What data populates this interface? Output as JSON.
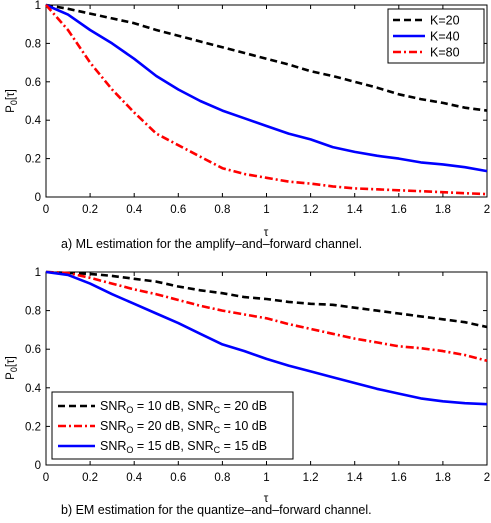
{
  "chart_data": [
    {
      "type": "line",
      "caption": "a) ML estimation for the amplify–and–forward channel.",
      "xlabel": "τ",
      "ylabel": {
        "main": "P",
        "sub": "0",
        "rest": "[τ]"
      },
      "xlim": [
        0,
        2
      ],
      "ylim": [
        0,
        1
      ],
      "x_ticks": [
        "0",
        "0.2",
        "0.4",
        "0.6",
        "0.8",
        "1",
        "1.2",
        "1.4",
        "1.6",
        "1.8",
        "2"
      ],
      "y_ticks": [
        "0",
        "0.2",
        "0.4",
        "0.6",
        "0.8",
        "1"
      ],
      "grid": false,
      "legend_position": "top-right",
      "series": [
        {
          "name": "K=20",
          "color": "#000000",
          "style": "dashed",
          "x": [
            0,
            0.1,
            0.2,
            0.3,
            0.4,
            0.5,
            0.6,
            0.7,
            0.8,
            0.9,
            1,
            1.1,
            1.2,
            1.3,
            1.4,
            1.5,
            1.6,
            1.7,
            1.8,
            1.9,
            2
          ],
          "y": [
            1,
            0.98,
            0.955,
            0.93,
            0.905,
            0.87,
            0.84,
            0.81,
            0.78,
            0.75,
            0.72,
            0.69,
            0.655,
            0.63,
            0.6,
            0.57,
            0.535,
            0.51,
            0.49,
            0.465,
            0.45
          ]
        },
        {
          "name": "K=40",
          "color": "#0000ff",
          "style": "solid",
          "x": [
            0,
            0.1,
            0.2,
            0.3,
            0.4,
            0.5,
            0.6,
            0.7,
            0.8,
            0.9,
            1,
            1.1,
            1.2,
            1.3,
            1.4,
            1.5,
            1.6,
            1.7,
            1.8,
            1.9,
            2
          ],
          "y": [
            1,
            0.95,
            0.87,
            0.8,
            0.72,
            0.63,
            0.56,
            0.5,
            0.45,
            0.41,
            0.37,
            0.33,
            0.3,
            0.26,
            0.235,
            0.215,
            0.2,
            0.18,
            0.17,
            0.155,
            0.135
          ]
        },
        {
          "name": "K=80",
          "color": "#ff0000",
          "style": "dashdot",
          "x": [
            0,
            0.1,
            0.2,
            0.3,
            0.4,
            0.5,
            0.6,
            0.7,
            0.8,
            0.9,
            1,
            1.1,
            1.2,
            1.3,
            1.4,
            1.5,
            1.6,
            1.7,
            1.8,
            1.9,
            2
          ],
          "y": [
            1,
            0.87,
            0.7,
            0.56,
            0.44,
            0.33,
            0.27,
            0.21,
            0.15,
            0.12,
            0.1,
            0.08,
            0.07,
            0.055,
            0.045,
            0.04,
            0.035,
            0.03,
            0.025,
            0.02,
            0.015
          ]
        }
      ]
    },
    {
      "type": "line",
      "caption": "b) EM estimation for the quantize–and–forward channel.",
      "xlabel": "τ",
      "ylabel": {
        "main": "P",
        "sub": "0",
        "rest": "[τ]"
      },
      "xlim": [
        0,
        2
      ],
      "ylim": [
        0,
        1
      ],
      "x_ticks": [
        "0",
        "0.2",
        "0.4",
        "0.6",
        "0.8",
        "1",
        "1.2",
        "1.4",
        "1.6",
        "1.8",
        "2"
      ],
      "y_ticks": [
        "0",
        "0.2",
        "0.4",
        "0.6",
        "0.8",
        "1"
      ],
      "grid": false,
      "legend_position": "bottom-left",
      "series": [
        {
          "name": "SNR_O = 10 dB, SNR_C = 20 dB",
          "color": "#000000",
          "style": "dashed",
          "x": [
            0,
            0.1,
            0.2,
            0.3,
            0.4,
            0.5,
            0.6,
            0.7,
            0.8,
            0.9,
            1,
            1.1,
            1.2,
            1.3,
            1.4,
            1.5,
            1.6,
            1.7,
            1.8,
            1.9,
            2
          ],
          "y": [
            1,
            0.995,
            0.99,
            0.98,
            0.965,
            0.95,
            0.925,
            0.905,
            0.89,
            0.87,
            0.86,
            0.845,
            0.835,
            0.83,
            0.815,
            0.8,
            0.785,
            0.77,
            0.755,
            0.74,
            0.715
          ]
        },
        {
          "name": "SNR_O = 20 dB, SNR_C = 10 dB",
          "color": "#ff0000",
          "style": "dashdot",
          "x": [
            0,
            0.1,
            0.2,
            0.3,
            0.4,
            0.5,
            0.6,
            0.7,
            0.8,
            0.9,
            1,
            1.1,
            1.2,
            1.3,
            1.4,
            1.5,
            1.6,
            1.7,
            1.8,
            1.9,
            2
          ],
          "y": [
            1,
            0.995,
            0.97,
            0.94,
            0.91,
            0.885,
            0.855,
            0.825,
            0.8,
            0.78,
            0.76,
            0.73,
            0.705,
            0.68,
            0.655,
            0.635,
            0.615,
            0.605,
            0.59,
            0.57,
            0.54
          ]
        },
        {
          "name": "SNR_O = 15 dB, SNR_C = 15 dB",
          "color": "#0000ff",
          "style": "solid",
          "x": [
            0,
            0.1,
            0.2,
            0.3,
            0.4,
            0.5,
            0.6,
            0.7,
            0.8,
            0.9,
            1,
            1.1,
            1.2,
            1.3,
            1.4,
            1.5,
            1.6,
            1.7,
            1.8,
            1.9,
            2
          ],
          "y": [
            1,
            0.985,
            0.94,
            0.885,
            0.835,
            0.785,
            0.735,
            0.68,
            0.625,
            0.59,
            0.55,
            0.515,
            0.485,
            0.455,
            0.425,
            0.395,
            0.37,
            0.345,
            0.33,
            0.32,
            0.315
          ]
        }
      ]
    }
  ],
  "legend_text": {
    "k20": "K=20",
    "k40": "K=40",
    "k80": "K=80",
    "snr1": {
      "a": "SNR",
      "a_sub": "O",
      "b": " = 10 dB, SNR",
      "b_sub": "C",
      "c": " = 20 dB"
    },
    "snr2": {
      "a": "SNR",
      "a_sub": "O",
      "b": " = 20 dB, SNR",
      "b_sub": "C",
      "c": " = 10 dB"
    },
    "snr3": {
      "a": "SNR",
      "a_sub": "O",
      "b": " = 15 dB, SNR",
      "b_sub": "C",
      "c": " = 15 dB"
    }
  }
}
